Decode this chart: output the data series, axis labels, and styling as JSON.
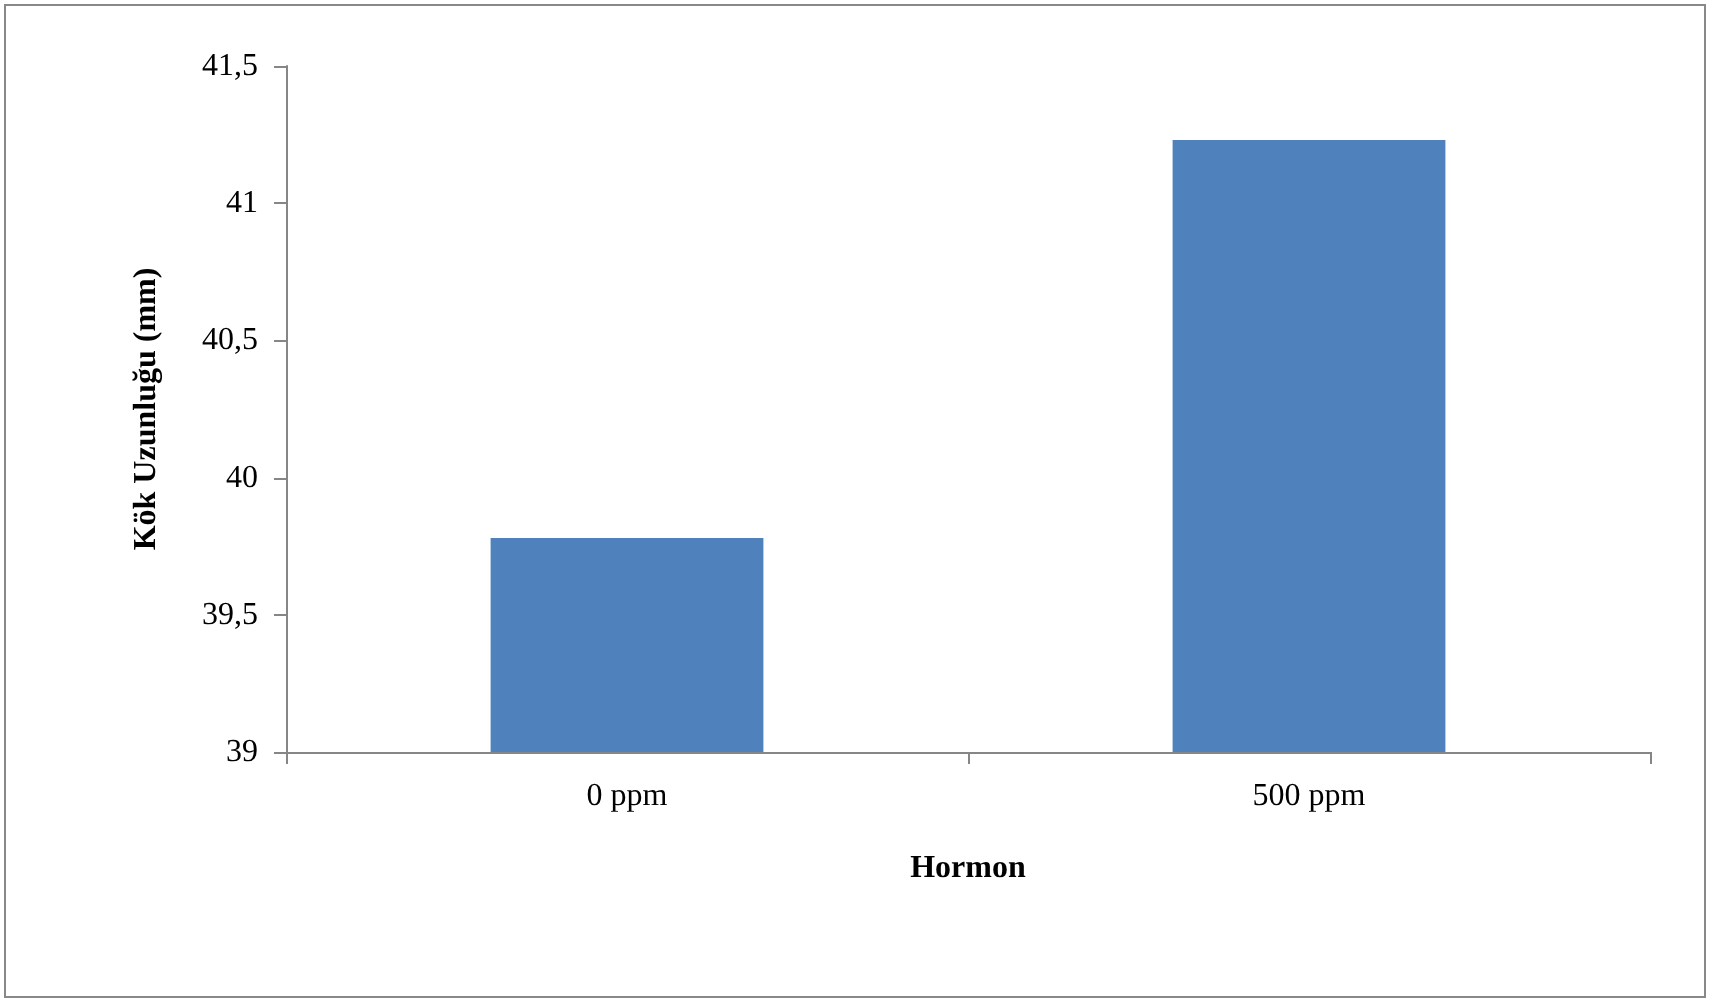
{
  "chart_data": {
    "type": "bar",
    "xlabel": "Hormon",
    "ylabel": "Kök Uzunluğu (mm)",
    "categories": [
      "0 ppm",
      "500 ppm"
    ],
    "values": [
      39.78,
      41.23
    ],
    "color": "#4f81bd",
    "ylim": [
      39,
      41.5
    ],
    "yticks": [
      {
        "value": 39,
        "label": "39"
      },
      {
        "value": 39.5,
        "label": "39,5"
      },
      {
        "value": 40,
        "label": "40"
      },
      {
        "value": 40.5,
        "label": "40,5"
      },
      {
        "value": 41,
        "label": "41"
      },
      {
        "value": 41.5,
        "label": "41,5"
      }
    ],
    "grid": false
  }
}
